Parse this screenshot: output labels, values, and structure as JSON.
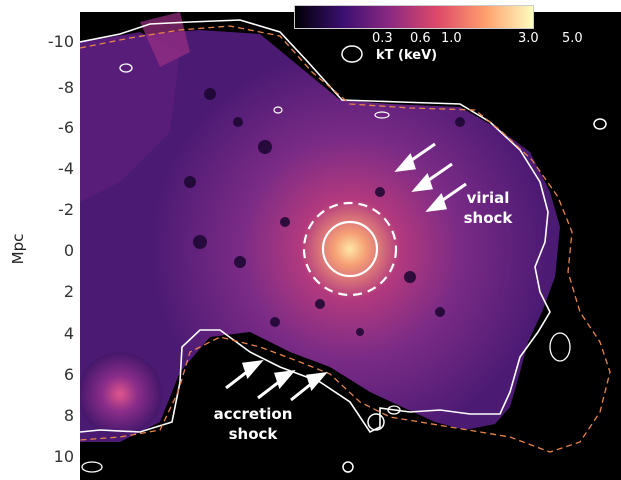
{
  "axis": {
    "ylabel": "Mpc",
    "yticks": [
      "-10",
      "-8",
      "-6",
      "-4",
      "-2",
      "0",
      "2",
      "4",
      "6",
      "8",
      "10"
    ]
  },
  "colorbar": {
    "title": "kT (keV)",
    "ticks": [
      "0.3",
      "0.6",
      "1.0",
      "3.0",
      "5.0"
    ],
    "colors": [
      "#000004",
      "#3b0f70",
      "#8c2981",
      "#de4968",
      "#fe9f6d",
      "#fcfdbf"
    ]
  },
  "annotations": {
    "virial_line1": "virial",
    "virial_line2": "shock",
    "accretion_line1": "accretion",
    "accretion_line2": "shock"
  },
  "colors": {
    "solid_contour": "#ffffff",
    "dashed_contour": "#e8844a",
    "arrows": "#ffffff"
  }
}
